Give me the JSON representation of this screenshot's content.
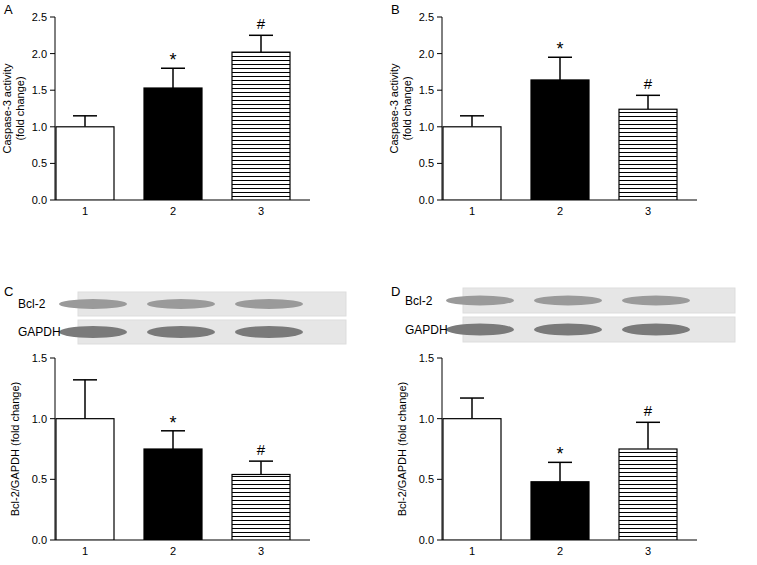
{
  "chart_data": [
    {
      "type": "bar",
      "panel": "A",
      "y_label": [
        "Caspase-3 activity",
        "(fold change)"
      ],
      "categories": [
        "1",
        "2",
        "3"
      ],
      "values": [
        1.0,
        1.53,
        2.02
      ],
      "errors": [
        0.15,
        0.27,
        0.23
      ],
      "colors": [
        "#ffffff",
        "#000000",
        "#ffffff"
      ],
      "ylim": [
        0,
        2.5
      ],
      "yticks": [
        {
          "value": 0,
          "label": "0.0"
        },
        0.5,
        {
          "value": 1,
          "label": "1.0"
        },
        1.5,
        {
          "value": 2,
          "label": "2.0"
        },
        2.5
      ],
      "annotations": [
        {
          "text": "*",
          "index": 1
        },
        {
          "text": "#",
          "index": 2
        }
      ]
    },
    {
      "type": "bar",
      "panel": "B",
      "y_label": [
        "Caspase-3 activity",
        "(fold change)"
      ],
      "categories": [
        "1",
        "2",
        "3"
      ],
      "values": [
        1.0,
        1.64,
        1.24
      ],
      "errors": [
        0.15,
        0.31,
        0.19
      ],
      "colors": [
        "#ffffff",
        "#000000",
        "#ffffff"
      ],
      "ylim": [
        0,
        2.5
      ],
      "yticks": [
        {
          "value": 0,
          "label": "0.0"
        },
        0.5,
        {
          "value": 1,
          "label": "1.0"
        },
        1.5,
        {
          "value": 2,
          "label": "2.0"
        },
        2.5
      ],
      "annotations": [
        {
          "text": "*",
          "index": 1
        },
        {
          "text": "#",
          "index": 2
        }
      ]
    },
    {
      "type": "bar",
      "panel": "C",
      "y_label": [
        "Bcl-2/GAPDH (fold change)"
      ],
      "blot_labels": [
        "Bcl-2",
        "GAPDH"
      ],
      "categories": [
        "1",
        "2",
        "3"
      ],
      "values": [
        1.0,
        0.75,
        0.54
      ],
      "errors": [
        0.32,
        0.15,
        0.11
      ],
      "colors": [
        "#ffffff",
        "#000000",
        "#ffffff"
      ],
      "ylim": [
        0,
        1.5
      ],
      "yticks": [
        {
          "value": 0,
          "label": "0.0"
        },
        0.5,
        {
          "value": 1,
          "label": "1.0"
        },
        1.5
      ],
      "annotations": [
        {
          "text": "*",
          "index": 1
        },
        {
          "text": "#",
          "index": 2
        }
      ]
    },
    {
      "type": "bar",
      "panel": "D",
      "y_label": [
        "Bcl-2/GAPDH (fold change)"
      ],
      "blot_labels": [
        "Bcl-2",
        "GAPDH"
      ],
      "categories": [
        "1",
        "2",
        "3"
      ],
      "values": [
        1.0,
        0.48,
        0.75
      ],
      "errors": [
        0.17,
        0.16,
        0.22
      ],
      "colors": [
        "#ffffff",
        "#000000",
        "#ffffff"
      ],
      "ylim": [
        0,
        1.5
      ],
      "yticks": [
        {
          "value": 0,
          "label": "0.0"
        },
        0.5,
        {
          "value": 1,
          "label": "1.0"
        },
        1.5
      ],
      "annotations": [
        {
          "text": "*",
          "index": 1
        },
        {
          "text": "#",
          "index": 2
        }
      ]
    }
  ]
}
